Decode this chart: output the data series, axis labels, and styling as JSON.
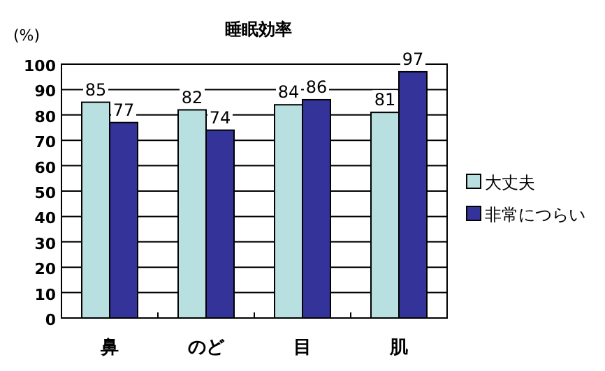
{
  "chart_data": {
    "type": "bar",
    "title": "睡眠効率",
    "ylabel": "(%)",
    "categories": [
      "鼻",
      "のど",
      "目",
      "肌"
    ],
    "series": [
      {
        "name": "大丈夫",
        "color": "#b8e0e0",
        "values": [
          85,
          82,
          84,
          81
        ]
      },
      {
        "name": "非常につらい",
        "color": "#333399",
        "values": [
          77,
          74,
          86,
          97
        ]
      }
    ],
    "ylim": [
      0,
      100
    ],
    "yticks": [
      0,
      10,
      20,
      30,
      40,
      50,
      60,
      70,
      80,
      90,
      100
    ],
    "grid": "y",
    "legend": "right",
    "data_labels": true
  }
}
